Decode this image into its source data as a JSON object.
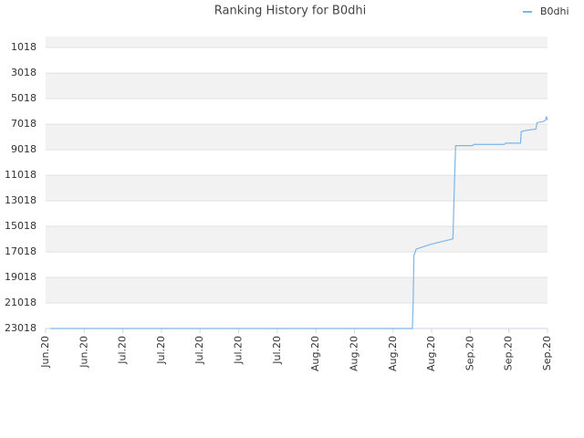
{
  "chart_data": {
    "type": "line",
    "title": "Ranking History for B0dhi",
    "series": [
      {
        "name": "B0dhi",
        "color": "#7cb5ec",
        "x": [
          0.12,
          9.5,
          9.52,
          9.54,
          9.6,
          10.0,
          10.55,
          10.58,
          10.62,
          11.05,
          11.1,
          11.88,
          11.92,
          12.3,
          12.32,
          12.45,
          12.7,
          12.73,
          12.9,
          12.95,
          12.97,
          13.0
        ],
        "values": [
          23018,
          23018,
          21000,
          17300,
          16800,
          16400,
          16000,
          12600,
          8700,
          8700,
          8600,
          8600,
          8500,
          8500,
          7600,
          7500,
          7400,
          6900,
          6800,
          6700,
          6400,
          6700
        ]
      }
    ],
    "xlim": [
      0,
      13
    ],
    "xticks": [
      {
        "value": 0,
        "label": "Jun.20"
      },
      {
        "value": 1,
        "label": "Jun.20"
      },
      {
        "value": 2,
        "label": "Jul.20"
      },
      {
        "value": 3,
        "label": "Jul.20"
      },
      {
        "value": 4,
        "label": "Jul.20"
      },
      {
        "value": 5,
        "label": "Jul.20"
      },
      {
        "value": 6,
        "label": "Jul.20"
      },
      {
        "value": 7,
        "label": "Aug.20"
      },
      {
        "value": 8,
        "label": "Aug.20"
      },
      {
        "value": 9,
        "label": "Aug.20"
      },
      {
        "value": 10,
        "label": "Aug.20"
      },
      {
        "value": 11,
        "label": "Sep.20"
      },
      {
        "value": 12,
        "label": "Sep.20"
      },
      {
        "value": 13,
        "label": "Sep.20"
      }
    ],
    "ylim": [
      23018,
      150
    ],
    "yticks": [
      1018,
      3018,
      5018,
      7018,
      9018,
      11018,
      13018,
      15018,
      17018,
      19018,
      21018,
      23018
    ],
    "grid": true,
    "legend": "top-right"
  }
}
